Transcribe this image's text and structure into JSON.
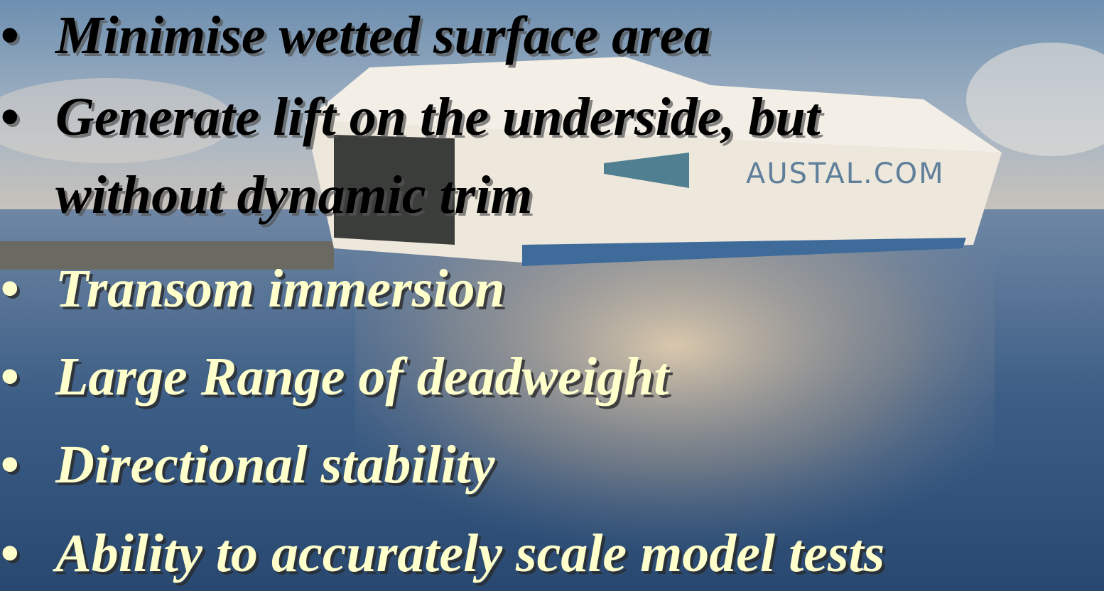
{
  "slide": {
    "bullet": "•",
    "items": [
      {
        "lines": [
          "Minimise wetted surface area"
        ]
      },
      {
        "lines": [
          "Generate lift on the underside, but",
          "without dynamic trim"
        ]
      },
      {
        "lines": [
          "Transom immersion"
        ]
      },
      {
        "lines": [
          "Large Range of deadweight"
        ]
      },
      {
        "lines": [
          "Directional stability"
        ]
      },
      {
        "lines": [
          "Ability to accurately scale model tests"
        ]
      }
    ],
    "ship_label": "AUSTAL.COM"
  }
}
